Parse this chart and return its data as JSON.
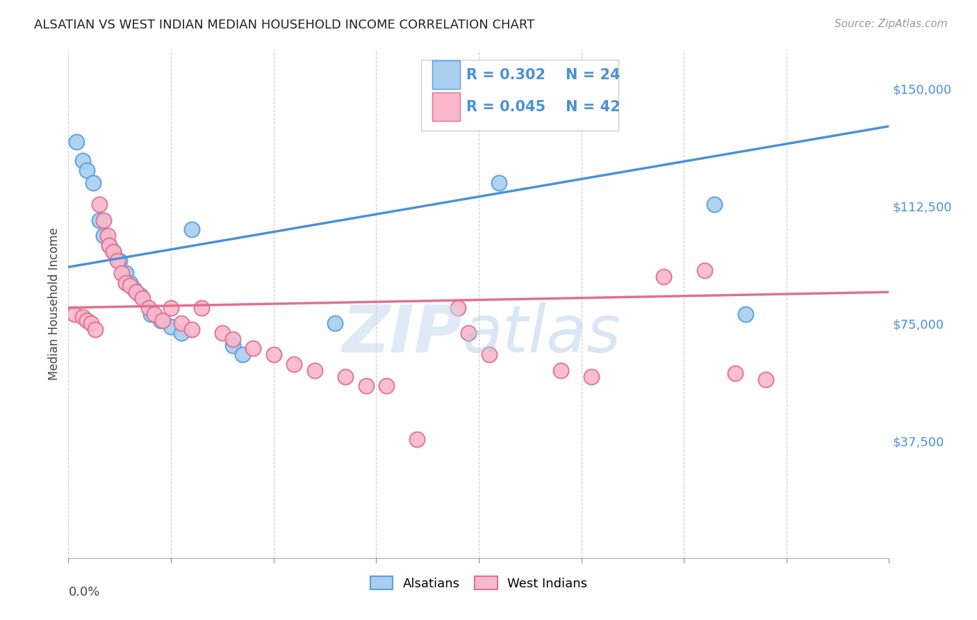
{
  "title": "ALSATIAN VS WEST INDIAN MEDIAN HOUSEHOLD INCOME CORRELATION CHART",
  "source": "Source: ZipAtlas.com",
  "ylabel": "Median Household Income",
  "ytick_labels": [
    "$37,500",
    "$75,000",
    "$112,500",
    "$150,000"
  ],
  "ytick_values": [
    37500,
    75000,
    112500,
    150000
  ],
  "ymin": 0,
  "ymax": 162500,
  "xmin": 0.0,
  "xmax": 0.4,
  "alsatian_label": "Alsatians",
  "westindian_label": "West Indians",
  "alsatian_color": "#a8cff0",
  "alsatian_edge": "#5a9ee0",
  "westindian_color": "#f9b8cc",
  "westindian_edge": "#e07090",
  "blue_line_color": "#4a90d9",
  "pink_line_color": "#e07090",
  "watermark_color": "#c8d8f0",
  "background_color": "#ffffff",
  "alsatian_x": [
    0.004,
    0.007,
    0.009,
    0.012,
    0.015,
    0.017,
    0.02,
    0.022,
    0.025,
    0.028,
    0.03,
    0.032,
    0.035,
    0.04,
    0.045,
    0.05,
    0.055,
    0.06,
    0.08,
    0.085,
    0.13,
    0.21,
    0.315,
    0.33
  ],
  "alsatian_y": [
    133000,
    127000,
    124000,
    120000,
    108000,
    103000,
    100000,
    98000,
    95000,
    91000,
    88000,
    86000,
    84000,
    78000,
    76000,
    74000,
    72000,
    105000,
    68000,
    65000,
    75000,
    120000,
    113000,
    78000
  ],
  "westindian_x": [
    0.003,
    0.007,
    0.009,
    0.011,
    0.013,
    0.015,
    0.017,
    0.019,
    0.02,
    0.022,
    0.024,
    0.026,
    0.028,
    0.03,
    0.033,
    0.036,
    0.039,
    0.042,
    0.046,
    0.05,
    0.055,
    0.06,
    0.065,
    0.075,
    0.08,
    0.09,
    0.1,
    0.11,
    0.12,
    0.135,
    0.145,
    0.155,
    0.17,
    0.19,
    0.195,
    0.205,
    0.24,
    0.255,
    0.29,
    0.31,
    0.325,
    0.34
  ],
  "westindian_y": [
    78000,
    77000,
    76000,
    75000,
    73000,
    113000,
    108000,
    103000,
    100000,
    98000,
    95000,
    91000,
    88000,
    87000,
    85000,
    83000,
    80000,
    78000,
    76000,
    80000,
    75000,
    73000,
    80000,
    72000,
    70000,
    67000,
    65000,
    62000,
    60000,
    58000,
    55000,
    55000,
    38000,
    80000,
    72000,
    65000,
    60000,
    58000,
    90000,
    92000,
    59000,
    57000
  ]
}
